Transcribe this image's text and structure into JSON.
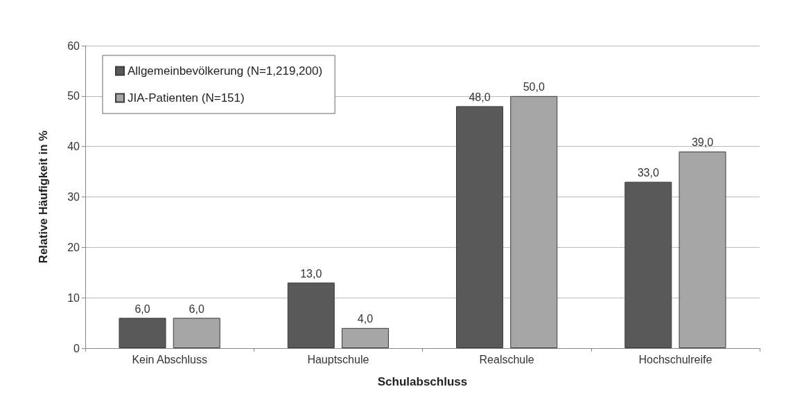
{
  "chart_data": {
    "type": "bar",
    "xlabel": "Schulabschluss",
    "ylabel": "Relative Häufigkeit in %",
    "categories": [
      "Kein Abschluss",
      "Hauptschule",
      "Realschule",
      "Hochschulreife"
    ],
    "series": [
      {
        "name": "Allgemeinbevölkerung (N=1,219,200)",
        "color": "#595959",
        "values": [
          6,
          13,
          48,
          33
        ],
        "value_labels": [
          "6,0",
          "13,0",
          "48,0",
          "33,0"
        ]
      },
      {
        "name": "JIA-Patienten (N=151)",
        "color": "#a6a6a6",
        "values": [
          6,
          4,
          50,
          39
        ],
        "value_labels": [
          "6,0",
          "4,0",
          "50,0",
          "39,0"
        ]
      }
    ],
    "ylim": [
      0,
      60
    ],
    "yticks": [
      0,
      10,
      20,
      30,
      40,
      50,
      60
    ],
    "grid": "y",
    "legend": "top left"
  }
}
